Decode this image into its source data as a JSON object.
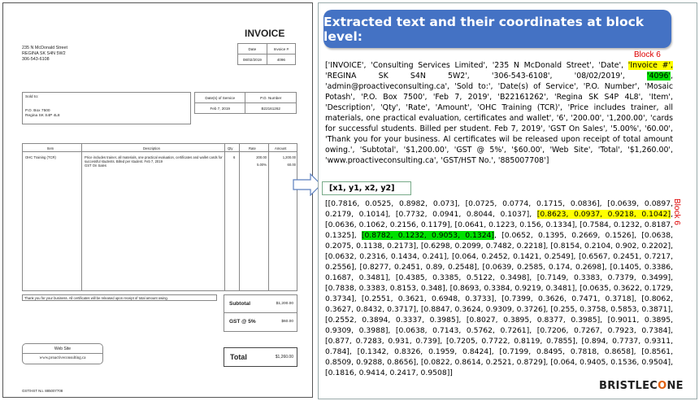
{
  "invoice": {
    "title": "INVOICE",
    "address": [
      "235 N McDonald Street",
      "REGINA SK  S4N 5W2",
      "306-543-6108"
    ],
    "date_label": "Date",
    "invoice_no_label": "Invoice #",
    "date_value": "08/02/2019",
    "invoice_no_value": "4096",
    "sold_to_label": "Sold to:",
    "sold_to_lines": [
      "P.O. Box 7500",
      "Regina SK  S4P 4L8"
    ],
    "service_date_label": "Date(s) of Service",
    "po_label": "P.O. Number",
    "service_date_value": "Feb 7, 2019",
    "po_value": "B22161262",
    "columns": [
      "Item",
      "Description",
      "Qty",
      "Rate",
      "Amount"
    ],
    "row": {
      "item": "OHC Training (TCR)",
      "description": "Price includes trainer, all materials, one practical evaluation, certificates and wallet cards for successful students.  Billed per student. Feb 7, 2019",
      "description2": "GST On Sales",
      "qty": "6",
      "rate": "200.00",
      "rate2": "5.00%",
      "amount": "1,200.00",
      "amount2": "60.00"
    },
    "thanks": "Thank you for your business.  All certificates will be released upon receipt of total amount owing.",
    "subtotal_label": "Subtotal",
    "subtotal_value": "$1,200.00",
    "gst_label": "GST @ 5%",
    "gst_value": "$60.00",
    "total_label": "Total",
    "total_value": "$1,260.00",
    "web_label": "Web Site",
    "web_value": "www.proactiveconsulting.ca",
    "gst_no": "GST/HST No.   885007708"
  },
  "panel": {
    "banner": "Extracted text and their coordinates at block level:",
    "block_label": "Block 6",
    "coord_header": "[x1, y1, x2, y2]",
    "brand_a": "BRISTLEC",
    "brand_b": "O",
    "brand_c": "NE",
    "text_pre": "['INVOICE', 'Consulting Services Limited', '235 N McDonald Street', 'Date', ",
    "text_hl1": "'Invoice #',",
    "text_mid1": " 'REGINA SK S4N 5W2', '306-543-6108', '08/02/2019', ",
    "text_hl2": "'4096'",
    "text_post": ", 'admin@proactiveconsulting.ca', 'Sold to:', 'Date(s) of Service', 'P.O. Number', 'Mosaic Potash', 'P.O. Box 7500', 'Feb 7, 2019', 'B22161262', 'Regina SK S4P 4L8', 'Item', 'Description', 'Qty', 'Rate', 'Amount', 'OHC Training (TCR)', 'Price includes trainer, all materials, one practical evaluation, certificates and wallet', '6', '200.00', '1,200.00', 'cards for successful students. Billed per student. Feb 7, 2019', 'GST On Sales', '5.00%', '60.00', 'Thank you for your business. Al certificates wil be released upon receipt of total amount owing.', 'Subtotal', '$1,200.00', 'GST @ 5%', '$60.00', 'Web Site', 'Total', '$1,260.00', 'www.proactiveconsulting.ca', 'GST/HST No.', '885007708']",
    "coords_pre": "[[0.7816, 0.0525, 0.8982, 0.073], [0.0725, 0.0774, 0.1715, 0.0836], [0.0639, 0.0897, 0.2179, 0.1014], [0.7732, 0.0941, 0.8044, 0.1037], ",
    "coords_hl1": "[0.8623, 0.0937, 0.9218, 0.1042]",
    "coords_mid1": ", [0.0636, 0.1062, 0.2156, 0.1179], [0.0641, 0.1223, 0.156, 0.1334], [0.7584, 0.1232, 0.8187, 0.1325], ",
    "coords_hl2": "[0.8782, 0.1232, 0.9053, 0.1324]",
    "coords_post": ", [0.0652, 0.1395, 0.2669, 0.1526], [0.0638, 0.2075, 0.1138, 0.2173], [0.6298, 0.2099, 0.7482, 0.2218], [0.8154, 0.2104, 0.902, 0.2202], [0.0632, 0.2316, 0.1434, 0.241], [0.064, 0.2452, 0.1421, 0.2549], [0.6567, 0.2451, 0.7217, 0.2556], [0.8277, 0.2451, 0.89, 0.2548], [0.0639, 0.2585, 0.174, 0.2698], [0.1405, 0.3386, 0.1687, 0.3481], [0.4385, 0.3385, 0.5122, 0.3498], [0.7149, 0.3383, 0.7379, 0.3499], [0.7838, 0.3383, 0.8153, 0.348], [0.8693, 0.3384, 0.9219, 0.3481], [0.0635, 0.3622, 0.1729, 0.3734], [0.2551, 0.3621, 0.6948, 0.3733], [0.7399, 0.3626, 0.7471, 0.3718], [0.8062, 0.3627, 0.8432, 0.3717], [0.8847, 0.3624, 0.9309, 0.3726], [0.255, 0.3758, 0.5853, 0.3871], [0.2552, 0.3894, 0.3337, 0.3985], [0.8027, 0.3895, 0.8377, 0.3985], [0.9011, 0.3895, 0.9309, 0.3988], [0.0638, 0.7143, 0.5762, 0.7261], [0.7206, 0.7267, 0.7923, 0.7384], [0.877, 0.7283, 0.931, 0.739], [0.7205, 0.7722, 0.8119, 0.7855], [0.894, 0.7737, 0.9311, 0.784], [0.1342, 0.8326, 0.1959, 0.8424], [0.7199, 0.8495, 0.7818, 0.8658], [0.8561, 0.8509, 0.9288, 0.8656], [0.0822, 0.8614, 0.2521, 0.8729], [0.064, 0.9405, 0.1536, 0.9504], [0.1816, 0.9414, 0.2417, 0.9508]]"
  }
}
